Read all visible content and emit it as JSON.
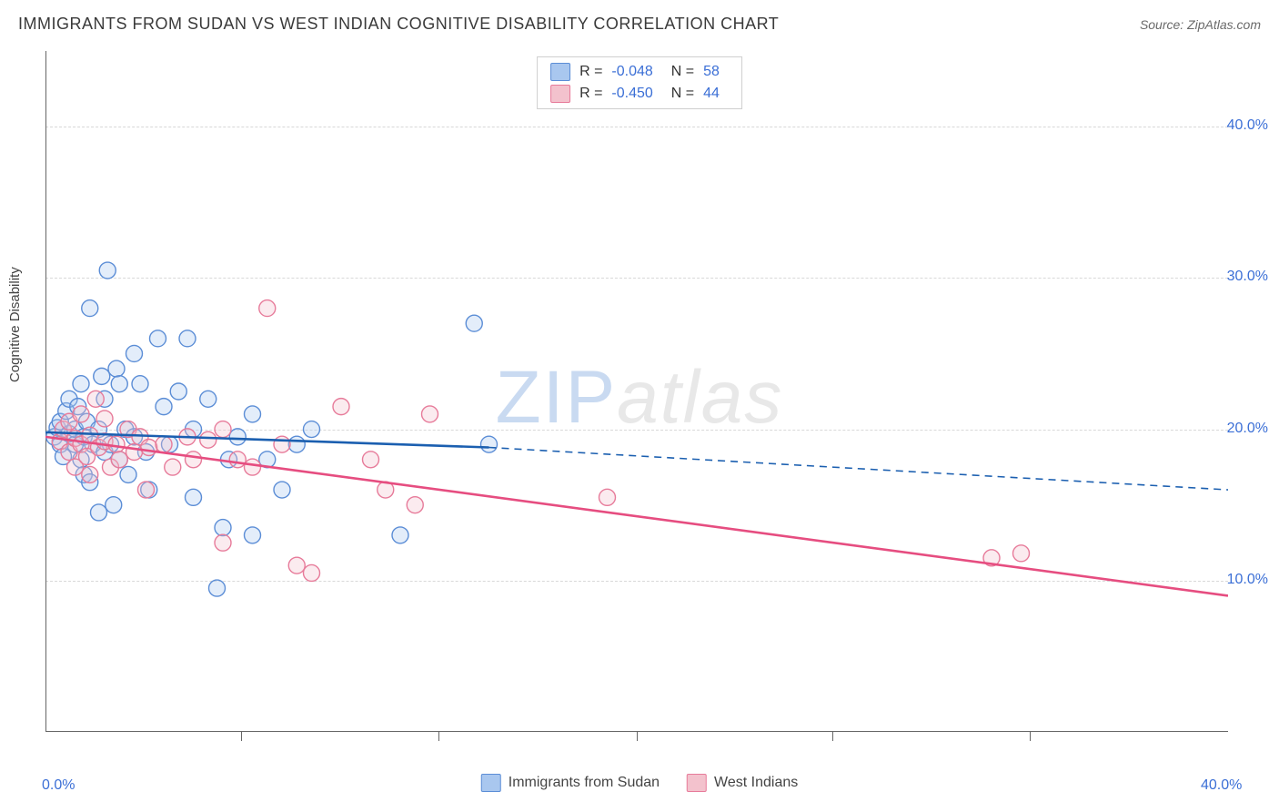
{
  "title": "IMMIGRANTS FROM SUDAN VS WEST INDIAN COGNITIVE DISABILITY CORRELATION CHART",
  "source_label": "Source: ZipAtlas.com",
  "y_axis_label": "Cognitive Disability",
  "watermark_zip": "ZIP",
  "watermark_atlas": "atlas",
  "chart": {
    "type": "scatter-correlation",
    "background_color": "#ffffff",
    "grid_color": "#d8d8d8",
    "axis_color": "#666666",
    "xlim": [
      0.0,
      40.0
    ],
    "ylim": [
      0.0,
      45.0
    ],
    "x_ticks": [
      0.0,
      40.0
    ],
    "x_minor_ticks": [
      6.6,
      13.3,
      20.0,
      26.6,
      33.3
    ],
    "y_grid_ticks": [
      10.0,
      20.0,
      30.0,
      40.0
    ],
    "x_tick_labels": [
      "0.0%",
      "40.0%"
    ],
    "y_tick_labels": [
      "10.0%",
      "20.0%",
      "30.0%",
      "40.0%"
    ],
    "tick_label_color": "#3b6fd6",
    "tick_label_fontsize": 16,
    "marker_radius": 9,
    "marker_fill_opacity": 0.32,
    "marker_stroke_width": 1.4,
    "regression_line_width": 2.6,
    "series": [
      {
        "name": "Immigrants from Sudan",
        "color_fill": "#a9c7ef",
        "color_stroke": "#5b8dd6",
        "line_color": "#1b5fb0",
        "R": "-0.048",
        "N": "58",
        "regression": {
          "x1": 0.0,
          "y1": 19.8,
          "x2_solid": 15.0,
          "y2_solid": 18.8,
          "x2": 40.0,
          "y2": 16.0
        },
        "points": [
          [
            0.3,
            19.5
          ],
          [
            0.4,
            20.1
          ],
          [
            0.5,
            19.0
          ],
          [
            0.5,
            20.5
          ],
          [
            0.6,
            18.2
          ],
          [
            0.7,
            21.2
          ],
          [
            0.8,
            19.7
          ],
          [
            0.8,
            22.0
          ],
          [
            1.0,
            19.0
          ],
          [
            1.0,
            20.0
          ],
          [
            1.1,
            21.5
          ],
          [
            1.2,
            18.0
          ],
          [
            1.2,
            23.0
          ],
          [
            1.3,
            17.0
          ],
          [
            1.3,
            19.5
          ],
          [
            1.4,
            20.5
          ],
          [
            1.5,
            28.0
          ],
          [
            1.5,
            16.5
          ],
          [
            1.6,
            19.0
          ],
          [
            1.8,
            14.5
          ],
          [
            1.8,
            20.0
          ],
          [
            1.9,
            23.5
          ],
          [
            2.0,
            18.5
          ],
          [
            2.0,
            22.0
          ],
          [
            2.1,
            30.5
          ],
          [
            2.2,
            19.0
          ],
          [
            2.3,
            15.0
          ],
          [
            2.4,
            24.0
          ],
          [
            2.5,
            18.0
          ],
          [
            2.5,
            23.0
          ],
          [
            2.7,
            20.0
          ],
          [
            2.8,
            17.0
          ],
          [
            3.0,
            19.5
          ],
          [
            3.0,
            25.0
          ],
          [
            3.2,
            23.0
          ],
          [
            3.4,
            18.5
          ],
          [
            3.5,
            16.0
          ],
          [
            3.8,
            26.0
          ],
          [
            4.0,
            21.5
          ],
          [
            4.2,
            19.0
          ],
          [
            4.5,
            22.5
          ],
          [
            4.8,
            26.0
          ],
          [
            5.0,
            15.5
          ],
          [
            5.0,
            20.0
          ],
          [
            5.5,
            22.0
          ],
          [
            5.8,
            9.5
          ],
          [
            6.0,
            13.5
          ],
          [
            6.2,
            18.0
          ],
          [
            6.5,
            19.5
          ],
          [
            7.0,
            21.0
          ],
          [
            7.0,
            13.0
          ],
          [
            7.5,
            18.0
          ],
          [
            8.0,
            16.0
          ],
          [
            8.5,
            19.0
          ],
          [
            9.0,
            20.0
          ],
          [
            12.0,
            13.0
          ],
          [
            14.5,
            27.0
          ],
          [
            15.0,
            19.0
          ]
        ]
      },
      {
        "name": "West Indians",
        "color_fill": "#f3c2cd",
        "color_stroke": "#e77b9a",
        "line_color": "#e64d80",
        "R": "-0.450",
        "N": "44",
        "regression": {
          "x1": 0.0,
          "y1": 19.5,
          "x2_solid": 40.0,
          "y2_solid": 9.0,
          "x2": 40.0,
          "y2": 9.0
        },
        "points": [
          [
            0.5,
            19.2
          ],
          [
            0.6,
            20.0
          ],
          [
            0.8,
            18.5
          ],
          [
            0.8,
            20.5
          ],
          [
            1.0,
            19.4
          ],
          [
            1.0,
            17.5
          ],
          [
            1.2,
            19.0
          ],
          [
            1.2,
            21.0
          ],
          [
            1.4,
            18.2
          ],
          [
            1.5,
            19.6
          ],
          [
            1.5,
            17.0
          ],
          [
            1.7,
            22.0
          ],
          [
            1.8,
            18.8
          ],
          [
            2.0,
            19.2
          ],
          [
            2.0,
            20.7
          ],
          [
            2.2,
            17.5
          ],
          [
            2.4,
            19.0
          ],
          [
            2.5,
            18.0
          ],
          [
            2.8,
            20.0
          ],
          [
            3.0,
            18.5
          ],
          [
            3.2,
            19.5
          ],
          [
            3.4,
            16.0
          ],
          [
            3.5,
            18.8
          ],
          [
            4.0,
            19.0
          ],
          [
            4.3,
            17.5
          ],
          [
            4.8,
            19.5
          ],
          [
            5.0,
            18.0
          ],
          [
            5.5,
            19.3
          ],
          [
            6.0,
            20.0
          ],
          [
            6.0,
            12.5
          ],
          [
            6.5,
            18.0
          ],
          [
            7.0,
            17.5
          ],
          [
            7.5,
            28.0
          ],
          [
            8.0,
            19.0
          ],
          [
            8.5,
            11.0
          ],
          [
            9.0,
            10.5
          ],
          [
            10.0,
            21.5
          ],
          [
            11.0,
            18.0
          ],
          [
            11.5,
            16.0
          ],
          [
            12.5,
            15.0
          ],
          [
            13.0,
            21.0
          ],
          [
            19.0,
            15.5
          ],
          [
            32.0,
            11.5
          ],
          [
            33.0,
            11.8
          ]
        ]
      }
    ]
  },
  "stats_box": {
    "rows": [
      {
        "swatch_fill": "#a9c7ef",
        "swatch_stroke": "#5b8dd6",
        "r_label": "R =",
        "r_val": "-0.048",
        "n_label": "N =",
        "n_val": "58"
      },
      {
        "swatch_fill": "#f3c2cd",
        "swatch_stroke": "#e77b9a",
        "r_label": "R =",
        "r_val": "-0.450",
        "n_label": "N =",
        "n_val": "44"
      }
    ]
  },
  "bottom_legend": [
    {
      "swatch_fill": "#a9c7ef",
      "swatch_stroke": "#5b8dd6",
      "label": "Immigrants from Sudan"
    },
    {
      "swatch_fill": "#f3c2cd",
      "swatch_stroke": "#e77b9a",
      "label": "West Indians"
    }
  ]
}
